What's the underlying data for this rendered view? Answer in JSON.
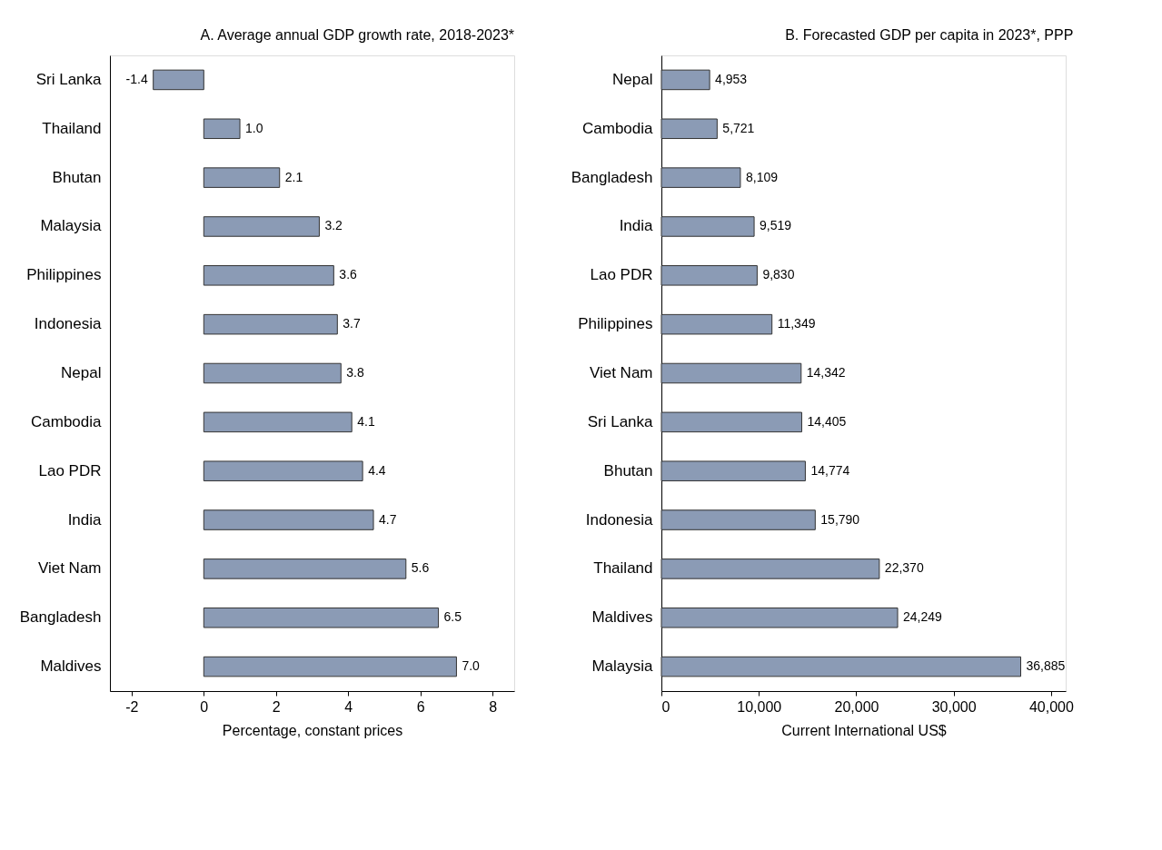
{
  "chart_data": [
    {
      "type": "bar",
      "orientation": "horizontal",
      "title": "A. Average annual GDP growth rate, 2018-2023*",
      "xlabel": "Percentage, constant prices",
      "categories": [
        "Sri Lanka",
        "Thailand",
        "Bhutan",
        "Malaysia",
        "Philippines",
        "Indonesia",
        "Nepal",
        "Cambodia",
        "Lao PDR",
        "India",
        "Viet Nam",
        "Bangladesh",
        "Maldives"
      ],
      "values": [
        -1.4,
        1.0,
        2.1,
        3.2,
        3.6,
        3.7,
        3.8,
        4.1,
        4.4,
        4.7,
        5.6,
        6.5,
        7.0
      ],
      "value_labels": [
        "-1.4",
        "1.0",
        "2.1",
        "3.2",
        "3.6",
        "3.7",
        "3.8",
        "4.1",
        "4.4",
        "4.7",
        "5.6",
        "6.5",
        "7.0"
      ],
      "color": "#8b9bb5",
      "xlim": [
        -2.6,
        8.6
      ],
      "xticks": [
        -2,
        0,
        2,
        4,
        6,
        8
      ],
      "grid": false
    },
    {
      "type": "bar",
      "orientation": "horizontal",
      "title": "B. Forecasted GDP per capita in 2023*, PPP",
      "xlabel": "Current International US$",
      "categories": [
        "Nepal",
        "Cambodia",
        "Bangladesh",
        "India",
        "Lao PDR",
        "Philippines",
        "Viet Nam",
        "Sri Lanka",
        "Bhutan",
        "Indonesia",
        "Thailand",
        "Maldives",
        "Malaysia"
      ],
      "values": [
        4953,
        5721,
        8109,
        9519,
        9830,
        11349,
        14342,
        14405,
        14774,
        15790,
        22370,
        24249,
        36885
      ],
      "value_labels": [
        "4,953",
        "5,721",
        "8,109",
        "9,519",
        "9,830",
        "11,349",
        "14,342",
        "14,405",
        "14,774",
        "15,790",
        "22,370",
        "24,249",
        "36,885"
      ],
      "color": "#8b9bb5",
      "xlim": [
        0,
        41500
      ],
      "xticks": [
        0,
        {
          "value": 10000,
          "label": "10,000"
        },
        {
          "value": 20000,
          "label": "20,000"
        },
        {
          "value": 30000,
          "label": "30,000"
        },
        {
          "value": 40000,
          "label": "40,000"
        }
      ],
      "grid": false
    }
  ]
}
